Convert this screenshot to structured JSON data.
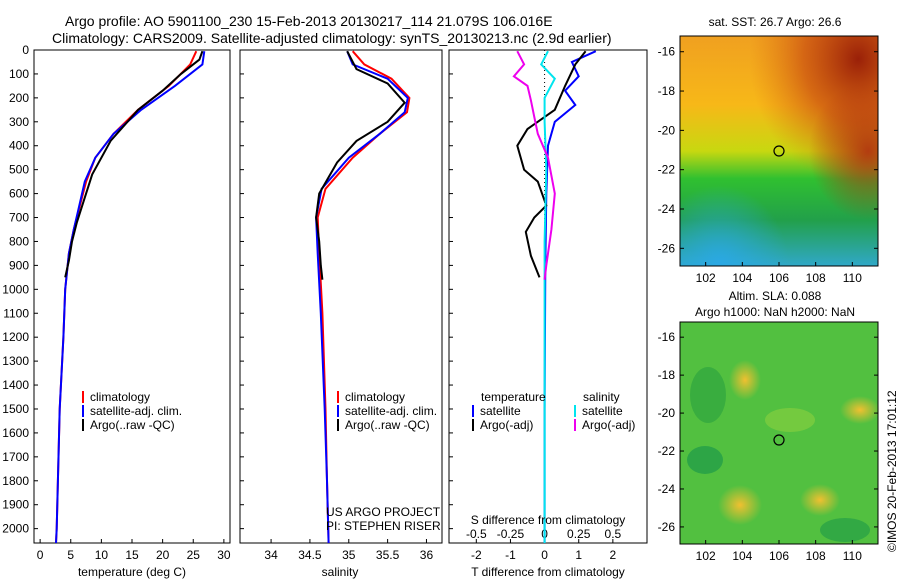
{
  "header": {
    "line1": "Argo profile: AO 5901100_230 15-Feb-2013 20130217_114 21.079S 106.016E",
    "line2": "Climatology: CARS2009. Satellite-adjusted climatology: synTS_20130213.nc (2.9d earlier)"
  },
  "depth_ticks": [
    "0",
    "100",
    "200",
    "300",
    "400",
    "500",
    "600",
    "700",
    "800",
    "900",
    "1000",
    "1100",
    "1200",
    "1300",
    "1400",
    "1500",
    "1600",
    "1700",
    "1800",
    "1900",
    "2000"
  ],
  "colors": {
    "climatology": "#ff0000",
    "satellite": "#0000ff",
    "argo": "#000000",
    "sal_satellite": "#00e5ee",
    "sal_argo": "#ee00ee"
  },
  "chart_data": [
    {
      "type": "line",
      "panel": "temperature",
      "xlabel": "temperature (deg C)",
      "xlim": [
        -1,
        31
      ],
      "ylim": [
        2060,
        0
      ],
      "xticks": [
        "0",
        "5",
        "10",
        "15",
        "20",
        "25",
        "30"
      ],
      "legend": [
        "climatology",
        "satellite-adj. clim.",
        "Argo(..raw -QC)"
      ],
      "series": [
        {
          "name": "climatology",
          "x": [
            25.5,
            24.5,
            21,
            16,
            12,
            9,
            7.5,
            6.5,
            5.5,
            4.7,
            4.1,
            3.8,
            3.2,
            2.9,
            2.7,
            2.6
          ],
          "y": [
            5,
            60,
            150,
            250,
            350,
            450,
            550,
            650,
            750,
            850,
            1000,
            1200,
            1500,
            1800,
            2000,
            2060
          ]
        },
        {
          "name": "satellite-adj. clim.",
          "x": [
            26.8,
            26.5,
            22,
            16.5,
            12,
            9,
            7.3,
            6.4,
            5.5,
            4.7,
            4.1,
            3.8,
            3.2,
            2.9,
            2.7,
            2.6
          ],
          "y": [
            5,
            60,
            150,
            250,
            350,
            450,
            550,
            650,
            750,
            850,
            1000,
            1200,
            1500,
            1800,
            2000,
            2060
          ]
        },
        {
          "name": "Argo(..raw -QC)",
          "x": [
            26.5,
            26,
            23,
            20,
            16,
            11.5,
            8.5,
            7,
            6,
            5.2,
            4.7,
            4.1
          ],
          "y": [
            5,
            40,
            100,
            170,
            250,
            380,
            520,
            640,
            720,
            800,
            880,
            950
          ]
        }
      ]
    },
    {
      "type": "line",
      "panel": "salinity",
      "xlabel": "salinity",
      "xlim": [
        33.6,
        36.2
      ],
      "ylim": [
        2060,
        0
      ],
      "xticks": [
        "34",
        "34.5",
        "35",
        "35.5",
        "36"
      ],
      "legend": [
        "climatology",
        "satellite-adj. clim.",
        "Argo(..raw -QC)"
      ],
      "annotation": [
        "US ARGO PROJECT",
        "PI: STEPHEN RISER"
      ],
      "series": [
        {
          "name": "climatology",
          "x": [
            35.05,
            35.2,
            35.55,
            35.78,
            35.75,
            35.4,
            35.05,
            34.7,
            34.6,
            34.62,
            34.66,
            34.7,
            34.72,
            34.74
          ],
          "y": [
            5,
            60,
            120,
            200,
            260,
            350,
            450,
            580,
            700,
            850,
            1100,
            1500,
            1800,
            2060
          ]
        },
        {
          "name": "satellite-adj. clim.",
          "x": [
            34.98,
            35.05,
            35.5,
            35.76,
            35.72,
            35.4,
            35.0,
            34.65,
            34.58,
            34.6,
            34.64,
            34.69,
            34.72,
            34.74
          ],
          "y": [
            5,
            60,
            120,
            200,
            260,
            350,
            450,
            580,
            700,
            850,
            1100,
            1500,
            1800,
            2060
          ]
        },
        {
          "name": "Argo(..raw -QC)",
          "x": [
            34.98,
            35.1,
            35.5,
            35.72,
            35.5,
            35.1,
            34.85,
            34.62,
            34.58,
            34.62,
            34.64,
            34.66
          ],
          "y": [
            5,
            80,
            140,
            220,
            300,
            380,
            470,
            600,
            700,
            800,
            900,
            960
          ]
        }
      ]
    },
    {
      "type": "line",
      "panel": "difference",
      "xlabel": "T difference from climatology",
      "xlabel2": "S difference from climatology",
      "xlim": [
        -2.8,
        3.0
      ],
      "ylim": [
        2060,
        0
      ],
      "xticks": [
        "-2",
        "-1",
        "0",
        "1",
        "2"
      ],
      "xticks2": [
        "-0.5",
        "-0.25",
        "0",
        "0.25",
        "0.5"
      ],
      "legend_title_t": "temperature",
      "legend_title_s": "salinity",
      "legend": [
        "satellite",
        "Argo(-adj)",
        "satellite",
        "Argo(-adj)"
      ],
      "series": [
        {
          "name": "satellite",
          "x": [
            1.5,
            0.8,
            1.0,
            0.6,
            0.9,
            0.3,
            0.1,
            0.05,
            0.02,
            0.0,
            0.0
          ],
          "y": [
            5,
            50,
            110,
            170,
            230,
            300,
            400,
            600,
            900,
            1500,
            2060
          ]
        },
        {
          "name": "Argo(-adj)",
          "x": [
            1.2,
            0.9,
            0.6,
            0.3,
            -0.5,
            -0.8,
            -0.6,
            -0.2,
            0.05,
            -0.3,
            -0.55,
            -0.4,
            -0.15
          ],
          "y": [
            5,
            60,
            150,
            250,
            330,
            400,
            500,
            550,
            650,
            700,
            760,
            860,
            950
          ]
        },
        {
          "name": "satellite",
          "x": [
            0.1,
            -0.1,
            0.3,
            0.0,
            0.0,
            0.05,
            0.0,
            0.0,
            0.0,
            0.0
          ],
          "y": [
            5,
            60,
            120,
            200,
            300,
            500,
            800,
            1200,
            1600,
            2060
          ]
        },
        {
          "name": "Argo(-adj)",
          "x": [
            -0.8,
            -0.6,
            -0.9,
            -0.5,
            -0.4,
            -0.3,
            -0.2,
            0.1,
            0.3,
            0.2,
            0.05,
            0.0
          ],
          "y": [
            5,
            60,
            110,
            150,
            210,
            280,
            350,
            450,
            600,
            750,
            900,
            960
          ]
        }
      ]
    }
  ],
  "maps": {
    "sst": {
      "title": "sat. SST: 26.7 Argo: 26.6",
      "yticks": [
        "-16",
        "-18",
        "-20",
        "-22",
        "-24",
        "-26"
      ],
      "xticks": [
        "102",
        "104",
        "106",
        "108",
        "110"
      ]
    },
    "sla": {
      "title1": "Altim. SLA: 0.088",
      "title2": "Argo h1000: NaN h2000: NaN",
      "yticks": [
        "-16",
        "-18",
        "-20",
        "-22",
        "-24",
        "-26"
      ],
      "xticks": [
        "102",
        "104",
        "106",
        "108",
        "110"
      ]
    }
  },
  "credit": "©IMOS 20-Feb-2013 17:01:12"
}
